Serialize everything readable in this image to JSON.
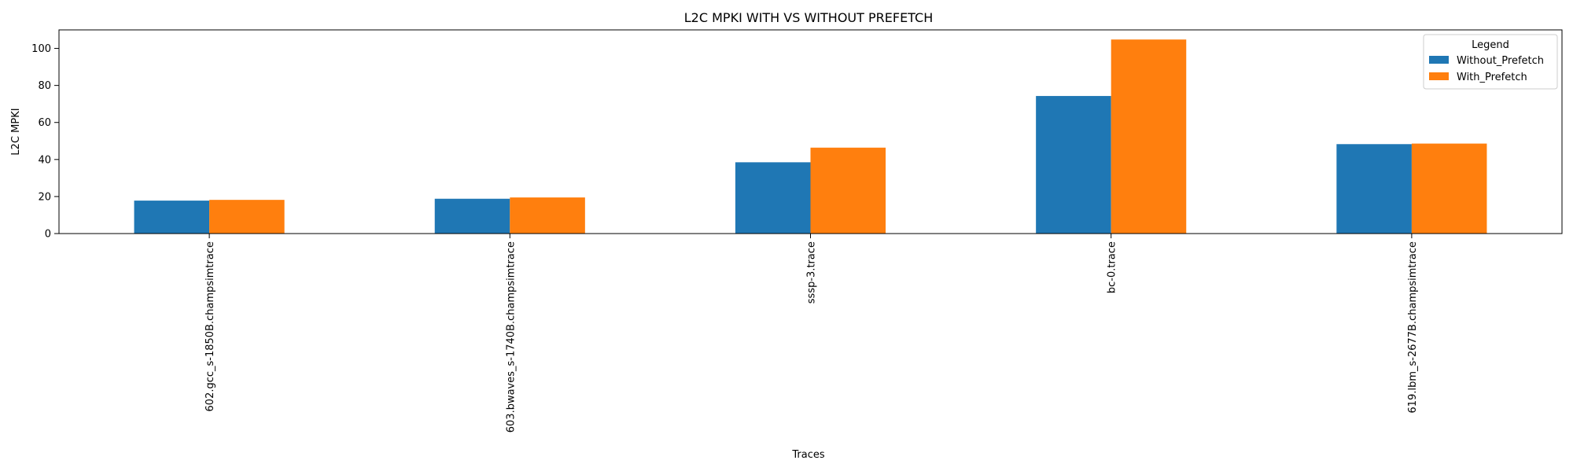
{
  "chart_data": {
    "type": "bar",
    "title": "L2C MPKI WITH VS WITHOUT PREFETCH",
    "xlabel": "Traces",
    "ylabel": "L2C MPKI",
    "categories": [
      "602.gcc_s-1850B.champsimtrace",
      "603.bwaves_s-1740B.champsimtrace",
      "sssp-3.trace",
      "bc-0.trace",
      "619.lbm_s-2677B.champsimtrace"
    ],
    "series": [
      {
        "name": "Without_Prefetch",
        "color": "#1f77b4",
        "values": [
          17.8,
          18.8,
          38.5,
          74.3,
          48.3
        ]
      },
      {
        "name": "With_Prefetch",
        "color": "#ff7f0e",
        "values": [
          18.2,
          19.5,
          46.4,
          104.8,
          48.6
        ]
      }
    ],
    "ylim": [
      0,
      110
    ],
    "yticks": [
      0,
      20,
      40,
      60,
      80,
      100
    ],
    "legend": {
      "title": "Legend",
      "position": "top-right"
    },
    "grid": false
  }
}
